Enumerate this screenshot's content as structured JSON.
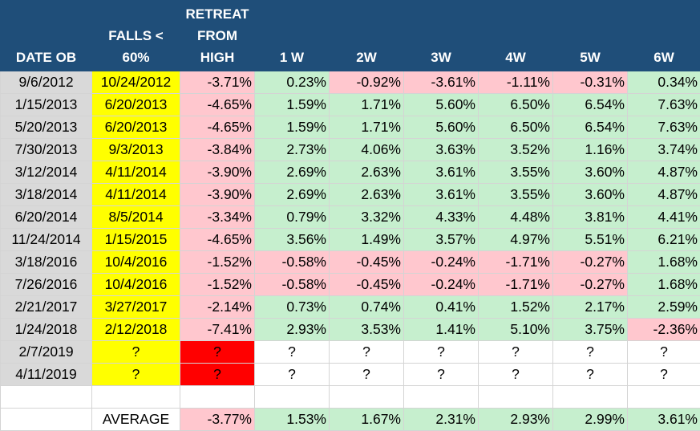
{
  "headers": {
    "date_ob": "DATE OB",
    "falls_line1": "FALLS <",
    "falls_line2": "60%",
    "retreat_line1": "RETREAT",
    "retreat_line2": "FROM",
    "retreat_line3": "HIGH",
    "w1": "1 W",
    "w2": "2W",
    "w3": "3W",
    "w4": "4W",
    "w5": "5W",
    "w6": "6W"
  },
  "colors": {
    "header_bg": "#1f4e79",
    "positive_bg": "#c6efce",
    "negative_bg": "#ffc7ce",
    "date_bg": "#d9d9d9",
    "falls_bg": "#ffff00",
    "alert_bg": "#ff0000"
  },
  "rows": [
    {
      "date": "9/6/2012",
      "falls": "10/24/2012",
      "retreat": "-3.71%",
      "w": [
        "0.23%",
        "-0.92%",
        "-3.61%",
        "-1.11%",
        "-0.31%",
        "0.34%"
      ]
    },
    {
      "date": "1/15/2013",
      "falls": "6/20/2013",
      "retreat": "-4.65%",
      "w": [
        "1.59%",
        "1.71%",
        "5.60%",
        "6.50%",
        "6.54%",
        "7.63%"
      ]
    },
    {
      "date": "5/20/2013",
      "falls": "6/20/2013",
      "retreat": "-4.65%",
      "w": [
        "1.59%",
        "1.71%",
        "5.60%",
        "6.50%",
        "6.54%",
        "7.63%"
      ]
    },
    {
      "date": "7/30/2013",
      "falls": "9/3/2013",
      "retreat": "-3.84%",
      "w": [
        "2.73%",
        "4.06%",
        "3.63%",
        "3.52%",
        "1.16%",
        "3.74%"
      ]
    },
    {
      "date": "3/12/2014",
      "falls": "4/11/2014",
      "retreat": "-3.90%",
      "w": [
        "2.69%",
        "2.63%",
        "3.61%",
        "3.55%",
        "3.60%",
        "4.87%"
      ]
    },
    {
      "date": "3/18/2014",
      "falls": "4/11/2014",
      "retreat": "-3.90%",
      "w": [
        "2.69%",
        "2.63%",
        "3.61%",
        "3.55%",
        "3.60%",
        "4.87%"
      ]
    },
    {
      "date": "6/20/2014",
      "falls": "8/5/2014",
      "retreat": "-3.34%",
      "w": [
        "0.79%",
        "3.32%",
        "4.33%",
        "4.48%",
        "3.81%",
        "4.41%"
      ]
    },
    {
      "date": "11/24/2014",
      "falls": "1/15/2015",
      "retreat": "-4.65%",
      "w": [
        "3.56%",
        "1.49%",
        "3.57%",
        "4.97%",
        "5.51%",
        "6.21%"
      ]
    },
    {
      "date": "3/18/2016",
      "falls": "10/4/2016",
      "retreat": "-1.52%",
      "w": [
        "-0.58%",
        "-0.45%",
        "-0.24%",
        "-1.71%",
        "-0.27%",
        "1.68%"
      ]
    },
    {
      "date": "7/26/2016",
      "falls": "10/4/2016",
      "retreat": "-1.52%",
      "w": [
        "-0.58%",
        "-0.45%",
        "-0.24%",
        "-1.71%",
        "-0.27%",
        "1.68%"
      ]
    },
    {
      "date": "2/21/2017",
      "falls": "3/27/2017",
      "retreat": "-2.14%",
      "w": [
        "0.73%",
        "0.74%",
        "0.41%",
        "1.52%",
        "2.17%",
        "2.59%"
      ]
    },
    {
      "date": "1/24/2018",
      "falls": "2/12/2018",
      "retreat": "-7.41%",
      "w": [
        "2.93%",
        "3.53%",
        "1.41%",
        "5.10%",
        "3.75%",
        "-2.36%"
      ]
    }
  ],
  "pending_rows": [
    {
      "date": "2/7/2019",
      "falls": "?",
      "retreat": "?",
      "w": [
        "?",
        "?",
        "?",
        "?",
        "?",
        "?"
      ]
    },
    {
      "date": "4/11/2019",
      "falls": "?",
      "retreat": "?",
      "w": [
        "?",
        "?",
        "?",
        "?",
        "?",
        "?"
      ]
    }
  ],
  "average": {
    "label": "AVERAGE",
    "retreat": "-3.77%",
    "w": [
      "1.53%",
      "1.67%",
      "2.31%",
      "2.93%",
      "2.99%",
      "3.61%"
    ]
  }
}
